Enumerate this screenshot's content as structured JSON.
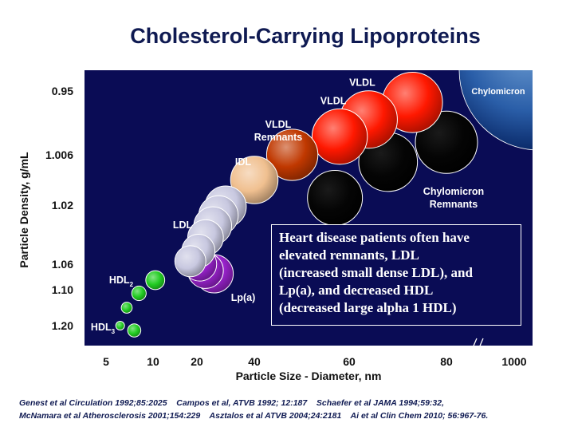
{
  "chart_data": {
    "type": "scatter",
    "title": "Cholesterol-Carrying Lipoproteins",
    "xlabel": "Particle Size - Diameter, nm",
    "ylabel": "Particle Density, g/mL",
    "x_ticks": [
      "5",
      "10",
      "20",
      "40",
      "60",
      "80",
      "1000"
    ],
    "y_ticks": [
      "0.95",
      "1.006",
      "1.02",
      "1.06",
      "1.10",
      "1.20"
    ],
    "particles": [
      {
        "label": "HDL",
        "label_sub": "3",
        "category": "HDL",
        "color": "#22cc22",
        "size": 6.5,
        "density": 1.2
      },
      {
        "label": "",
        "category": "HDL",
        "color": "#22cc22",
        "size": 7.2,
        "density": 1.15
      },
      {
        "label": "",
        "category": "HDL",
        "color": "#22cc22",
        "size": 8,
        "density": 1.21
      },
      {
        "label": "",
        "category": "HDL",
        "color": "#22cc22",
        "size": 8.5,
        "density": 1.11
      },
      {
        "label": "HDL",
        "label_sub": "2",
        "category": "HDL",
        "color": "#22cc22",
        "size": 10.5,
        "density": 1.085
      },
      {
        "label": "Lp(a)",
        "category": "Lp(a)",
        "color": "#9922cc",
        "size": 21,
        "density": 1.06
      },
      {
        "label": "",
        "category": "Lp(a)",
        "color": "#9922cc",
        "size": 23,
        "density": 1.07
      },
      {
        "label": "",
        "category": "Lp(a)",
        "color": "#9922cc",
        "size": 26,
        "density": 1.075
      },
      {
        "label": "",
        "category": "LDL",
        "color": "#c8c8e0",
        "size": 18.5,
        "density": 1.058
      },
      {
        "label": "",
        "category": "LDL",
        "color": "#c8c8e0",
        "size": 20.5,
        "density": 1.051
      },
      {
        "label": "",
        "category": "LDL",
        "color": "#c8c8e0",
        "size": 23,
        "density": 1.042
      },
      {
        "label": "",
        "category": "LDL",
        "color": "#c8c8e0",
        "size": 25.5,
        "density": 1.034
      },
      {
        "label": "LDL",
        "category": "LDL",
        "color": "#c8c8e0",
        "size": 27.5,
        "density": 1.027
      },
      {
        "label": "",
        "category": "LDL",
        "color": "#c8c8e0",
        "size": 30,
        "density": 1.021
      },
      {
        "label": "IDL",
        "category": "IDL",
        "color": "#f0c090",
        "size": 40,
        "density": 1.013
      },
      {
        "label": "VLDL Remnants",
        "category": "VLDL Remnants",
        "color": "#c03800",
        "size": 48,
        "density": 1.006
      },
      {
        "label": "VLDL",
        "category": "VLDL",
        "color": "#ff1800",
        "size": 58,
        "density": 0.99
      },
      {
        "label": "VLDL",
        "category": "VLDL",
        "color": "#ff1800",
        "size": 64,
        "density": 0.975
      },
      {
        "label": "VLDL",
        "category": "VLDL",
        "color": "#ff1800",
        "size": 73,
        "density": 0.96
      },
      {
        "label": "",
        "category": "Chylomicron Remnants",
        "color": "#050505",
        "size": 57,
        "density": 1.018
      },
      {
        "label": "Chylomicron Remnants",
        "category": "Chylomicron Remnants",
        "color": "#050505",
        "size": 68,
        "density": 1.008
      },
      {
        "label": "",
        "category": "Chylomicron Remnants",
        "color": "#050505",
        "size": 80,
        "density": 0.995
      },
      {
        "label": "Chylomicron",
        "category": "Chylomicron",
        "color": "#1a4f9a",
        "size": 1000,
        "density": 0.95
      }
    ]
  },
  "note": {
    "lines": [
      "Heart disease patients often have",
      "elevated remnants, LDL",
      "(increased small dense LDL), and",
      "Lp(a), and decreased HDL",
      "(decreased large alpha 1 HDL)"
    ]
  },
  "references": [
    "Genest et al Circulation 1992;85:2025    Campos et al, ATVB 1992; 12:187    Schaefer et al JAMA 1994;59:32,",
    "McNamara et al Atherosclerosis 2001;154:229    Asztalos et al ATVB 2004;24:2181    Ai et al Clin Chem 2010; 56:967-76."
  ],
  "colors": {
    "plot_background": "#0a0c55",
    "title": "#0f1a52"
  }
}
